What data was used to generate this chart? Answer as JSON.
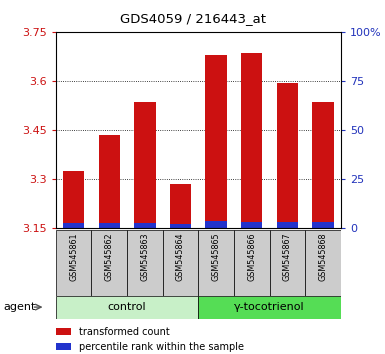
{
  "title": "GDS4059 / 216443_at",
  "samples": [
    "GSM545861",
    "GSM545862",
    "GSM545863",
    "GSM545864",
    "GSM545865",
    "GSM545866",
    "GSM545867",
    "GSM545868"
  ],
  "red_values": [
    3.325,
    3.435,
    3.535,
    3.285,
    3.68,
    3.685,
    3.595,
    3.535
  ],
  "blue_values": [
    3.165,
    3.165,
    3.165,
    3.162,
    3.172,
    3.17,
    3.17,
    3.168
  ],
  "y_min": 3.15,
  "y_max": 3.75,
  "y_ticks": [
    3.15,
    3.3,
    3.45,
    3.6,
    3.75
  ],
  "y_tick_labels": [
    "3.15",
    "3.3",
    "3.45",
    "3.6",
    "3.75"
  ],
  "y2_ticks": [
    0,
    25,
    50,
    75,
    100
  ],
  "y2_tick_labels": [
    "0",
    "25",
    "50",
    "75",
    "100%"
  ],
  "groups": [
    {
      "label": "control",
      "indices": [
        0,
        1,
        2,
        3
      ],
      "color": "#c8f0c8"
    },
    {
      "label": "γ-tocotrienol",
      "indices": [
        4,
        5,
        6,
        7
      ],
      "color": "#55dd55"
    }
  ],
  "agent_label": "agent",
  "bar_color_red": "#cc1111",
  "bar_color_blue": "#2233cc",
  "bar_width": 0.6,
  "bg_sample_row": "#cccccc",
  "left_axis_color": "#cc1111",
  "right_axis_color": "#2233bb",
  "legend_red": "transformed count",
  "legend_blue": "percentile rank within the sample"
}
